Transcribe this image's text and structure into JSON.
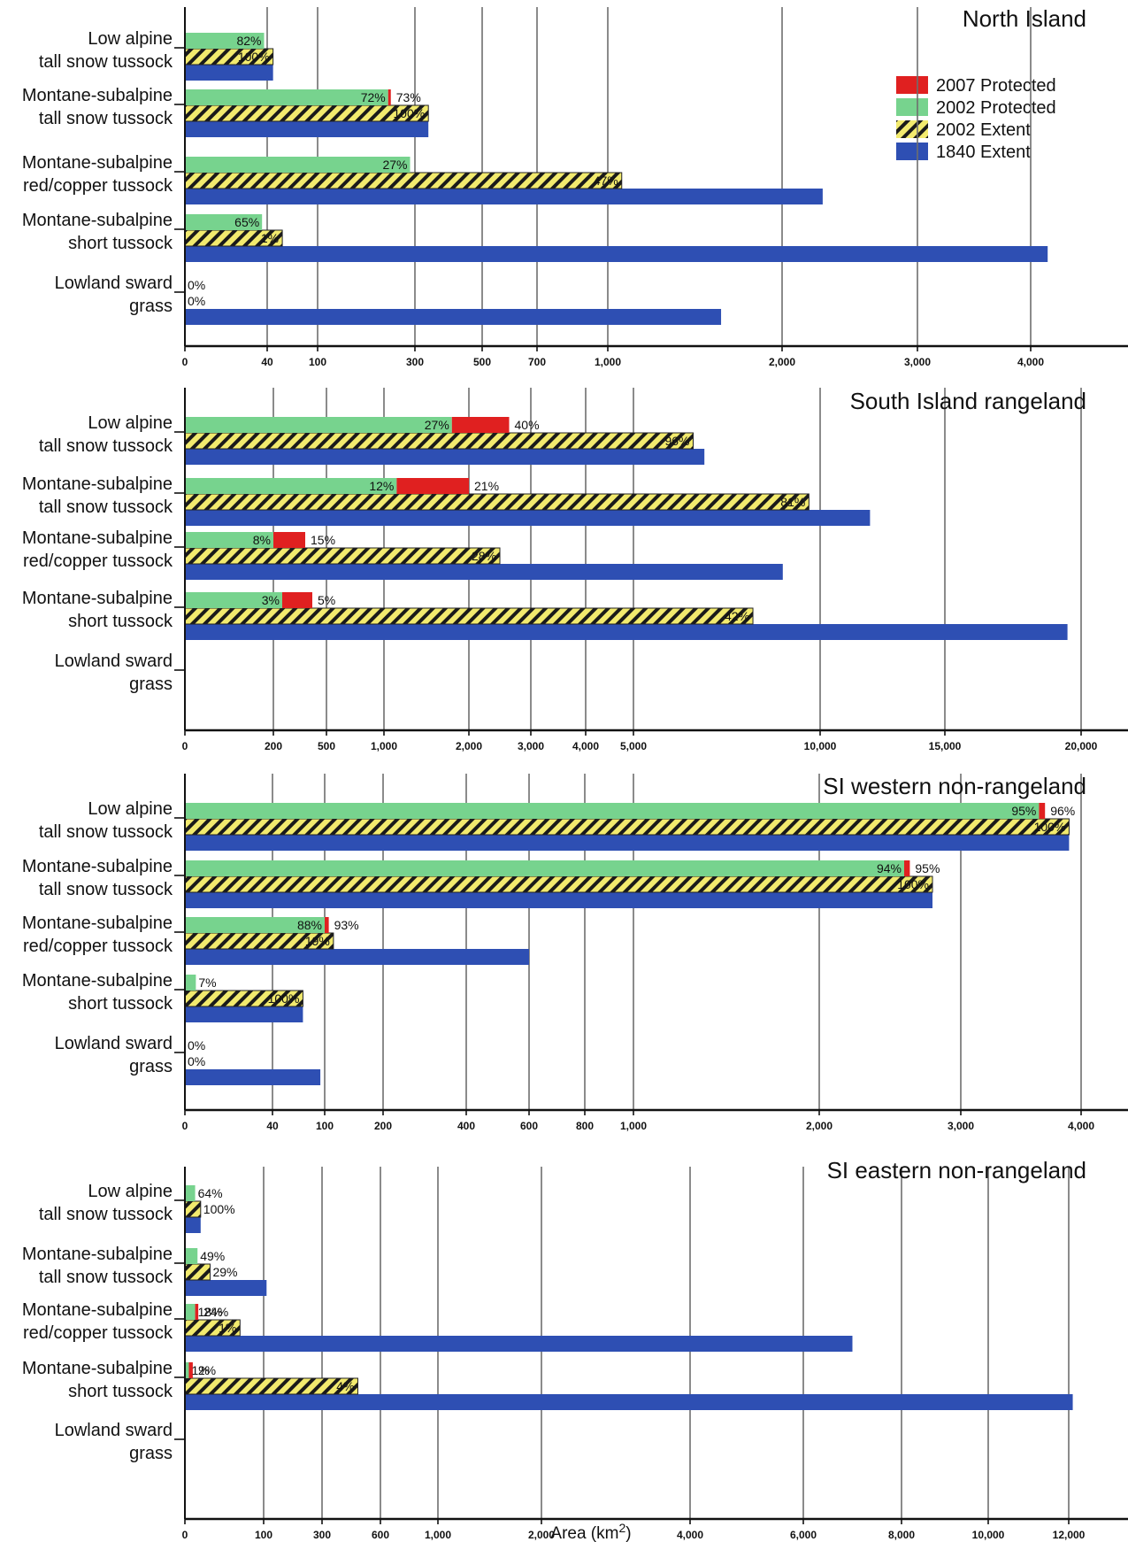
{
  "chart_data": {
    "type": "bar",
    "orientation": "horizontal",
    "xlabel": "Area (km2)",
    "categories": [
      "Low alpine\ntall snow tussock",
      "Montane-subalpine\ntall snow tussock",
      "Montane-subalpine\nred/copper tussock",
      "Montane-subalpine\nshort tussock",
      "Lowland sward\ngrass"
    ],
    "legend": {
      "placement": "top-right",
      "items": [
        {
          "name": "2007 Protected",
          "color": "#e02020",
          "pattern": "solid"
        },
        {
          "name": "2002 Protected",
          "color": "#77d38e",
          "pattern": "solid"
        },
        {
          "name": "2002 Extent",
          "color": "#f2ea6e",
          "pattern": "hatch"
        },
        {
          "name": "1840 Extent",
          "color": "#2e4fb3",
          "pattern": "solid"
        }
      ]
    },
    "panels": [
      {
        "title": "North Island",
        "x_scale": "nonlinear (sqrt-like)",
        "ticks": [
          {
            "value": 0,
            "label": "0"
          },
          {
            "value": 40,
            "label": "40"
          },
          {
            "value": 100,
            "label": "100"
          },
          {
            "value": 300,
            "label": "300"
          },
          {
            "value": 500,
            "label": "500"
          },
          {
            "value": 700,
            "label": "700"
          },
          {
            "value": 1000,
            "label": "1,000"
          },
          {
            "value": 2000,
            "label": "2,000"
          },
          {
            "value": 3000,
            "label": "3,000"
          },
          {
            "value": 4000,
            "label": "4,000"
          }
        ],
        "bars": [
          {
            "extent_1840": 47,
            "extent_2002": 47,
            "extent_2002_label": "100%",
            "protected_2002": 38.5,
            "protected_2002_label": "82%",
            "protected_2007": null,
            "protected_2007_label": ""
          },
          {
            "extent_1840": 340,
            "extent_2002": 340,
            "extent_2002_label": "100%",
            "protected_2002": 245,
            "protected_2002_label": "72%",
            "protected_2007": 248,
            "protected_2007_label": "73%"
          },
          {
            "extent_1840": 2300,
            "extent_2002": 1080,
            "extent_2002_label": "47%",
            "protected_2002": 290,
            "protected_2002_label": "27%",
            "protected_2007": null,
            "protected_2007_label": ""
          },
          {
            "extent_1840": 4150,
            "extent_2002": 58,
            "extent_2002_label": "1%",
            "protected_2002": 37.5,
            "protected_2002_label": "65%",
            "protected_2007": null,
            "protected_2007_label": ""
          },
          {
            "extent_1840": 1650,
            "extent_2002": 0,
            "extent_2002_label": "0%",
            "protected_2002": 0,
            "protected_2002_label": "0%",
            "protected_2007": null,
            "protected_2007_label": ""
          }
        ]
      },
      {
        "title": "South Island rangeland",
        "x_scale": "nonlinear (sqrt-like)",
        "ticks": [
          {
            "value": 0,
            "label": "0"
          },
          {
            "value": 200,
            "label": "200"
          },
          {
            "value": 500,
            "label": "500"
          },
          {
            "value": 1000,
            "label": "1,000"
          },
          {
            "value": 2000,
            "label": "2,000"
          },
          {
            "value": 3000,
            "label": "3,000"
          },
          {
            "value": 4000,
            "label": "4,000"
          },
          {
            "value": 5000,
            "label": "5,000"
          },
          {
            "value": 10000,
            "label": "10,000"
          },
          {
            "value": 15000,
            "label": "15,000"
          },
          {
            "value": 20000,
            "label": "20,000"
          }
        ],
        "bars": [
          {
            "extent_1840": 6900,
            "extent_2002": 6600,
            "extent_2002_label": "96%",
            "protected_2002": 1800,
            "protected_2002_label": "27%",
            "protected_2007": 2650,
            "protected_2007_label": "40%"
          },
          {
            "extent_1840": 12000,
            "extent_2002": 9700,
            "extent_2002_label": "81%",
            "protected_2002": 1150,
            "protected_2002_label": "12%",
            "protected_2007": 2000,
            "protected_2007_label": "21%"
          },
          {
            "extent_1840": 9000,
            "extent_2002": 2500,
            "extent_2002_label": "28%",
            "protected_2002": 200,
            "protected_2002_label": "8%",
            "protected_2007": 380,
            "protected_2007_label": "15%"
          },
          {
            "extent_1840": 19500,
            "extent_2002": 8200,
            "extent_2002_label": "42%",
            "protected_2002": 250,
            "protected_2002_label": "3%",
            "protected_2007": 420,
            "protected_2007_label": "5%"
          },
          {
            "extent_1840": null,
            "extent_2002": null,
            "extent_2002_label": "",
            "protected_2002": null,
            "protected_2002_label": "",
            "protected_2007": null,
            "protected_2007_label": ""
          }
        ]
      },
      {
        "title": "SI western non-rangeland",
        "x_scale": "nonlinear (sqrt-like)",
        "ticks": [
          {
            "value": 0,
            "label": "0"
          },
          {
            "value": 40,
            "label": "40"
          },
          {
            "value": 100,
            "label": "100"
          },
          {
            "value": 200,
            "label": "200"
          },
          {
            "value": 400,
            "label": "400"
          },
          {
            "value": 600,
            "label": "600"
          },
          {
            "value": 800,
            "label": "800"
          },
          {
            "value": 1000,
            "label": "1,000"
          },
          {
            "value": 2000,
            "label": "2,000"
          },
          {
            "value": 3000,
            "label": "3,000"
          },
          {
            "value": 4000,
            "label": "4,000"
          }
        ],
        "bars": [
          {
            "extent_1840": 3900,
            "extent_2002": 3900,
            "extent_2002_label": "100%",
            "protected_2002": 3650,
            "protected_2002_label": "95%",
            "protected_2007": 3700,
            "protected_2007_label": "96%"
          },
          {
            "extent_1840": 2800,
            "extent_2002": 2800,
            "extent_2002_label": "100%",
            "protected_2002": 2600,
            "protected_2002_label": "94%",
            "protected_2007": 2640,
            "protected_2007_label": "95%"
          },
          {
            "extent_1840": 600,
            "extent_2002": 115,
            "extent_2002_label": "19%",
            "protected_2002": 100,
            "protected_2002_label": "88%",
            "protected_2007": 107,
            "protected_2007_label": "93%"
          },
          {
            "extent_1840": 75,
            "extent_2002": 75,
            "extent_2002_label": "100%",
            "protected_2002": 5,
            "protected_2002_label": "7%",
            "protected_2007": null,
            "protected_2007_label": ""
          },
          {
            "extent_1840": 95,
            "extent_2002": 0,
            "extent_2002_label": "0%",
            "protected_2002": 0,
            "protected_2002_label": "0%",
            "protected_2007": null,
            "protected_2007_label": ""
          }
        ]
      },
      {
        "title": "SI eastern non-rangeland",
        "x_scale": "nonlinear (sqrt-like)",
        "ticks": [
          {
            "value": 0,
            "label": "0"
          },
          {
            "value": 100,
            "label": "100"
          },
          {
            "value": 300,
            "label": "300"
          },
          {
            "value": 600,
            "label": "600"
          },
          {
            "value": 1000,
            "label": "1,000"
          },
          {
            "value": 2000,
            "label": "2,000"
          },
          {
            "value": 4000,
            "label": "4,000"
          },
          {
            "value": 6000,
            "label": "6,000"
          },
          {
            "value": 8000,
            "label": "8,000"
          },
          {
            "value": 10000,
            "label": "10,000"
          },
          {
            "value": 12000,
            "label": "12,000"
          }
        ],
        "bars": [
          {
            "extent_1840": 20,
            "extent_2002": 20,
            "extent_2002_label": "100%",
            "protected_2002": 13,
            "protected_2002_label": "64%",
            "protected_2007": null,
            "protected_2007_label": ""
          },
          {
            "extent_1840": 110,
            "extent_2002": 32,
            "extent_2002_label": "29%",
            "protected_2002": 16,
            "protected_2002_label": "49%",
            "protected_2007": null,
            "protected_2007_label": ""
          },
          {
            "extent_1840": 7000,
            "extent_2002": 70,
            "extent_2002_label": "1%",
            "protected_2002": 13,
            "protected_2002_label": "18%",
            "protected_2007": 17,
            "protected_2007_label": "24%"
          },
          {
            "extent_1840": 12100,
            "extent_2002": 484,
            "extent_2002_label": "4%",
            "protected_2002": 5,
            "protected_2002_label": "1%",
            "protected_2007": 10,
            "protected_2007_label": "2%"
          },
          {
            "extent_1840": null,
            "extent_2002": null,
            "extent_2002_label": "",
            "protected_2002": null,
            "protected_2002_label": "",
            "protected_2007": null,
            "protected_2007_label": ""
          }
        ]
      }
    ]
  }
}
